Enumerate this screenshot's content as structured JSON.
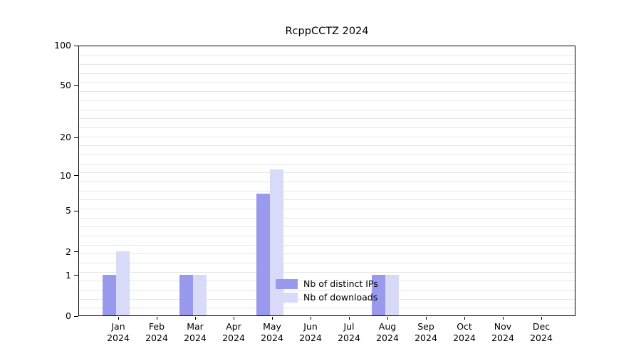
{
  "chart_data": {
    "type": "bar",
    "title": "RcppCCTZ 2024",
    "categories": [
      "Jan",
      "Feb",
      "Mar",
      "Apr",
      "May",
      "Jun",
      "Jul",
      "Aug",
      "Sep",
      "Oct",
      "Nov",
      "Dec"
    ],
    "year_label": "2024",
    "series": [
      {
        "name": "Nb of distinct IPs",
        "color": "#9999ee",
        "values": [
          1,
          0,
          1,
          0,
          7,
          0,
          0,
          1,
          0,
          0,
          0,
          0
        ]
      },
      {
        "name": "Nb of downloads",
        "color": "#d9d9f8",
        "values": [
          2,
          0,
          1,
          0,
          11,
          0,
          0,
          1,
          0,
          0,
          0,
          0
        ]
      }
    ],
    "yscale": "log1p",
    "yticks": [
      0,
      1,
      2,
      5,
      10,
      20,
      50,
      100
    ],
    "ylim": [
      0,
      100
    ],
    "grid": "horizontal-minor",
    "legend_position": "inside-bottom-center"
  },
  "colors": {
    "grid": "#e6e6e6",
    "axis": "#000000",
    "background": "#ffffff",
    "text": "#000000"
  }
}
